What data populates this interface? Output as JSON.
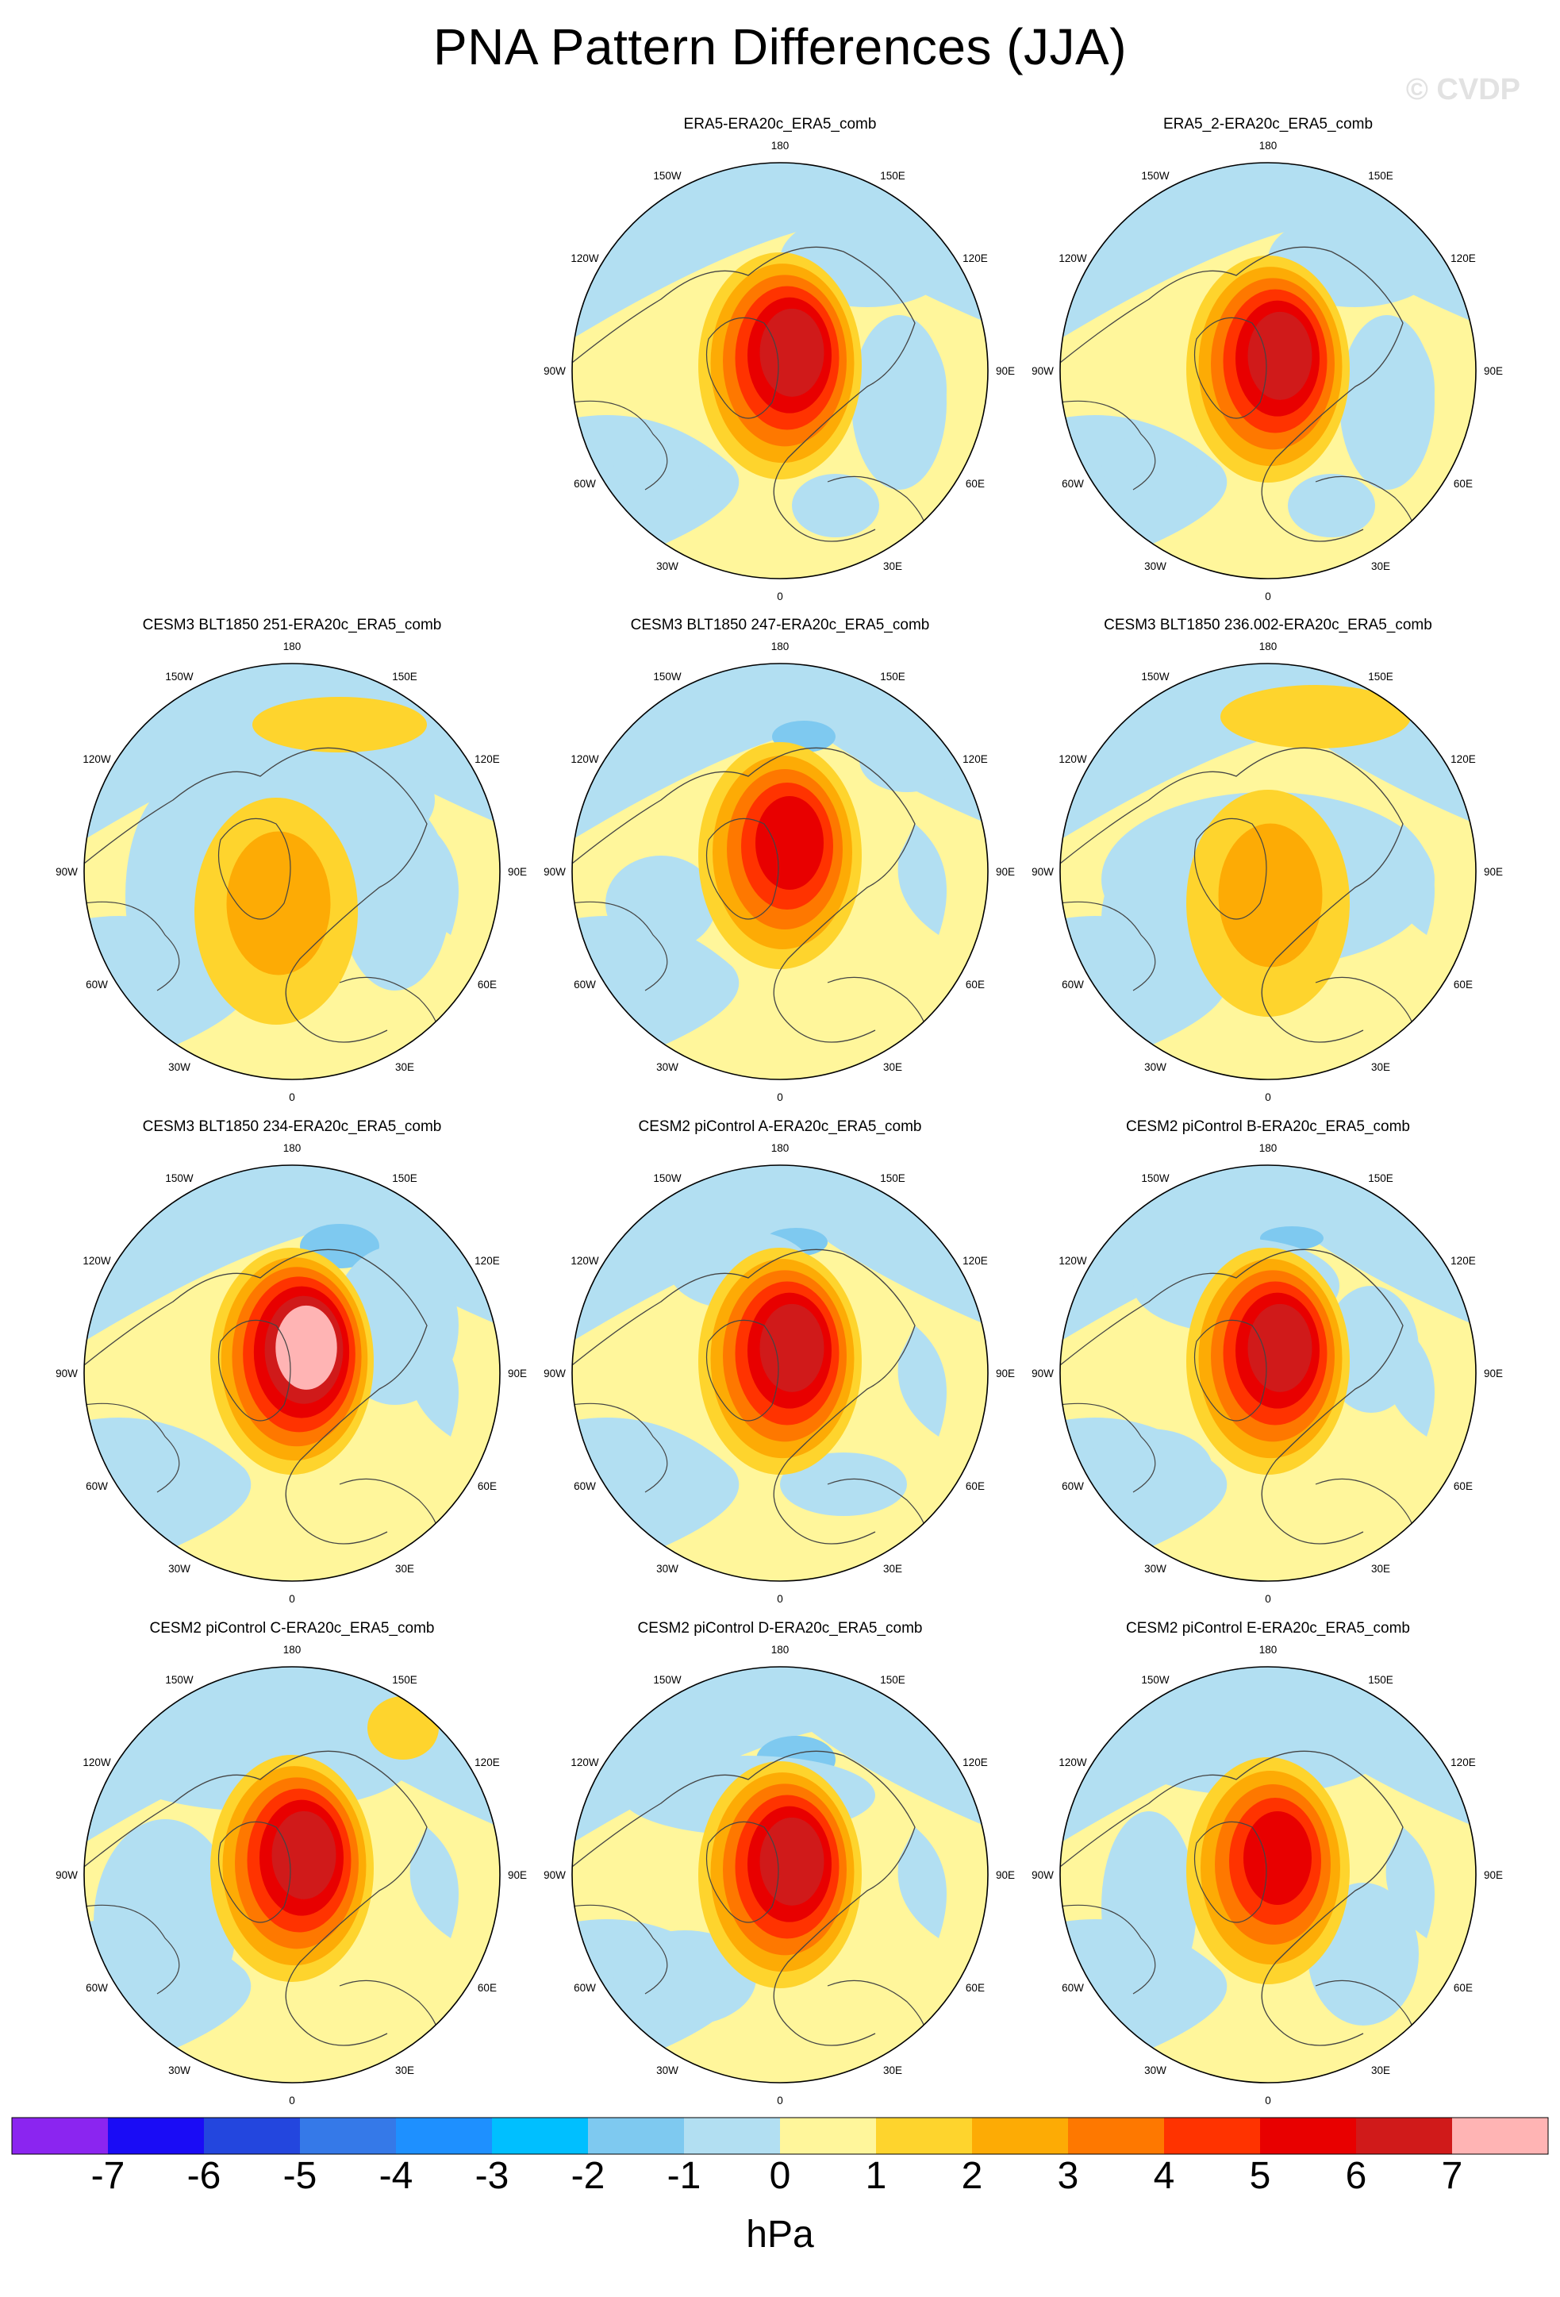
{
  "title": "PNA Pattern Differences (JJA)",
  "watermark": "© CVDP",
  "chart_data": {
    "type": "polar-stereographic contour map panels",
    "variable": "sea level pressure pattern difference",
    "units": "hPa",
    "longitude_labels": [
      "180",
      "150E",
      "120E",
      "90E",
      "60E",
      "30E",
      "0",
      "30W",
      "60W",
      "90W",
      "120W",
      "150W"
    ],
    "colorbar": {
      "levels": [
        "-7",
        "-6",
        "-5",
        "-4",
        "-3",
        "-2",
        "-1",
        "0",
        "1",
        "2",
        "3",
        "4",
        "5",
        "6",
        "7"
      ],
      "colors": [
        "#8b25f0",
        "#1a0cf5",
        "#2346de",
        "#3579e8",
        "#1e90ff",
        "#00bfff",
        "#7ec9f0",
        "#b2dff2",
        "#fff69b",
        "#fed42d",
        "#fdab05",
        "#fe7800",
        "#ff3300",
        "#e80000",
        "#d01a1a",
        "#ffb4b4"
      ],
      "label": "hPa"
    },
    "panels": [
      {
        "title": "ERA5-ERA20c_ERA5_comb",
        "max_hPa": 5.5
      },
      {
        "title": "ERA5_2-ERA20c_ERA5_comb",
        "max_hPa": 5.5
      },
      {
        "title": "CESM3 BLT1850 251-ERA20c_ERA5_comb",
        "max_hPa": 1.5
      },
      {
        "title": "CESM3 BLT1850 247-ERA20c_ERA5_comb",
        "max_hPa": 4.5
      },
      {
        "title": "CESM3 BLT1850 236.002-ERA20c_ERA5_comb",
        "max_hPa": 1.5
      },
      {
        "title": "CESM3 BLT1850 234-ERA20c_ERA5_comb",
        "max_hPa": 6.5
      },
      {
        "title": "CESM2 piControl A-ERA20c_ERA5_comb",
        "max_hPa": 5.5
      },
      {
        "title": "CESM2 piControl B-ERA20c_ERA5_comb",
        "max_hPa": 5.5
      },
      {
        "title": "CESM2 piControl C-ERA20c_ERA5_comb",
        "max_hPa": 5.5
      },
      {
        "title": "CESM2 piControl D-ERA20c_ERA5_comb",
        "max_hPa": 5.5
      },
      {
        "title": "CESM2 piControl E-ERA20c_ERA5_comb",
        "max_hPa": 4.5
      }
    ]
  }
}
